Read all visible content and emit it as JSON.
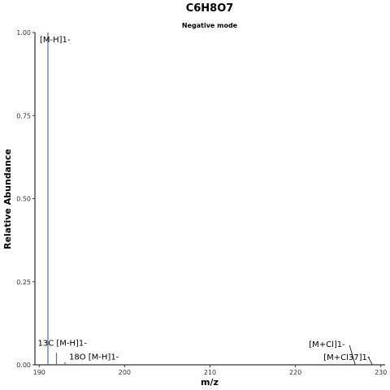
{
  "chart_data": {
    "type": "bar",
    "title": "C6H8O7",
    "subtitle": "Negative mode",
    "xlabel": "m/z",
    "ylabel": "Relative Abundance",
    "xlim": [
      189.5,
      230.5
    ],
    "ylim": [
      0,
      1.0
    ],
    "xticks": [
      190,
      200,
      210,
      220,
      230
    ],
    "yticks": [
      0,
      0.25,
      0.5,
      0.75,
      1.0
    ],
    "ytick_labels": [
      "0.00",
      "0.25",
      "0.50",
      "0.75",
      "1.00"
    ],
    "grid": false,
    "line_color": "#4a6f9a",
    "peaks": [
      {
        "label": "[M-H]1-",
        "x": 191.02,
        "y": 1.0
      },
      {
        "label": "13C [M-H]1-",
        "x": 192.02,
        "y": 0.036
      },
      {
        "label": "18O [M-H]1-",
        "x": 193.02,
        "y": 0.008
      },
      {
        "label": "[M+Cl]1-",
        "x": 227.0,
        "y": 0.0
      },
      {
        "label": "[M+Cl37]1-",
        "x": 229.0,
        "y": 0.0
      }
    ]
  }
}
